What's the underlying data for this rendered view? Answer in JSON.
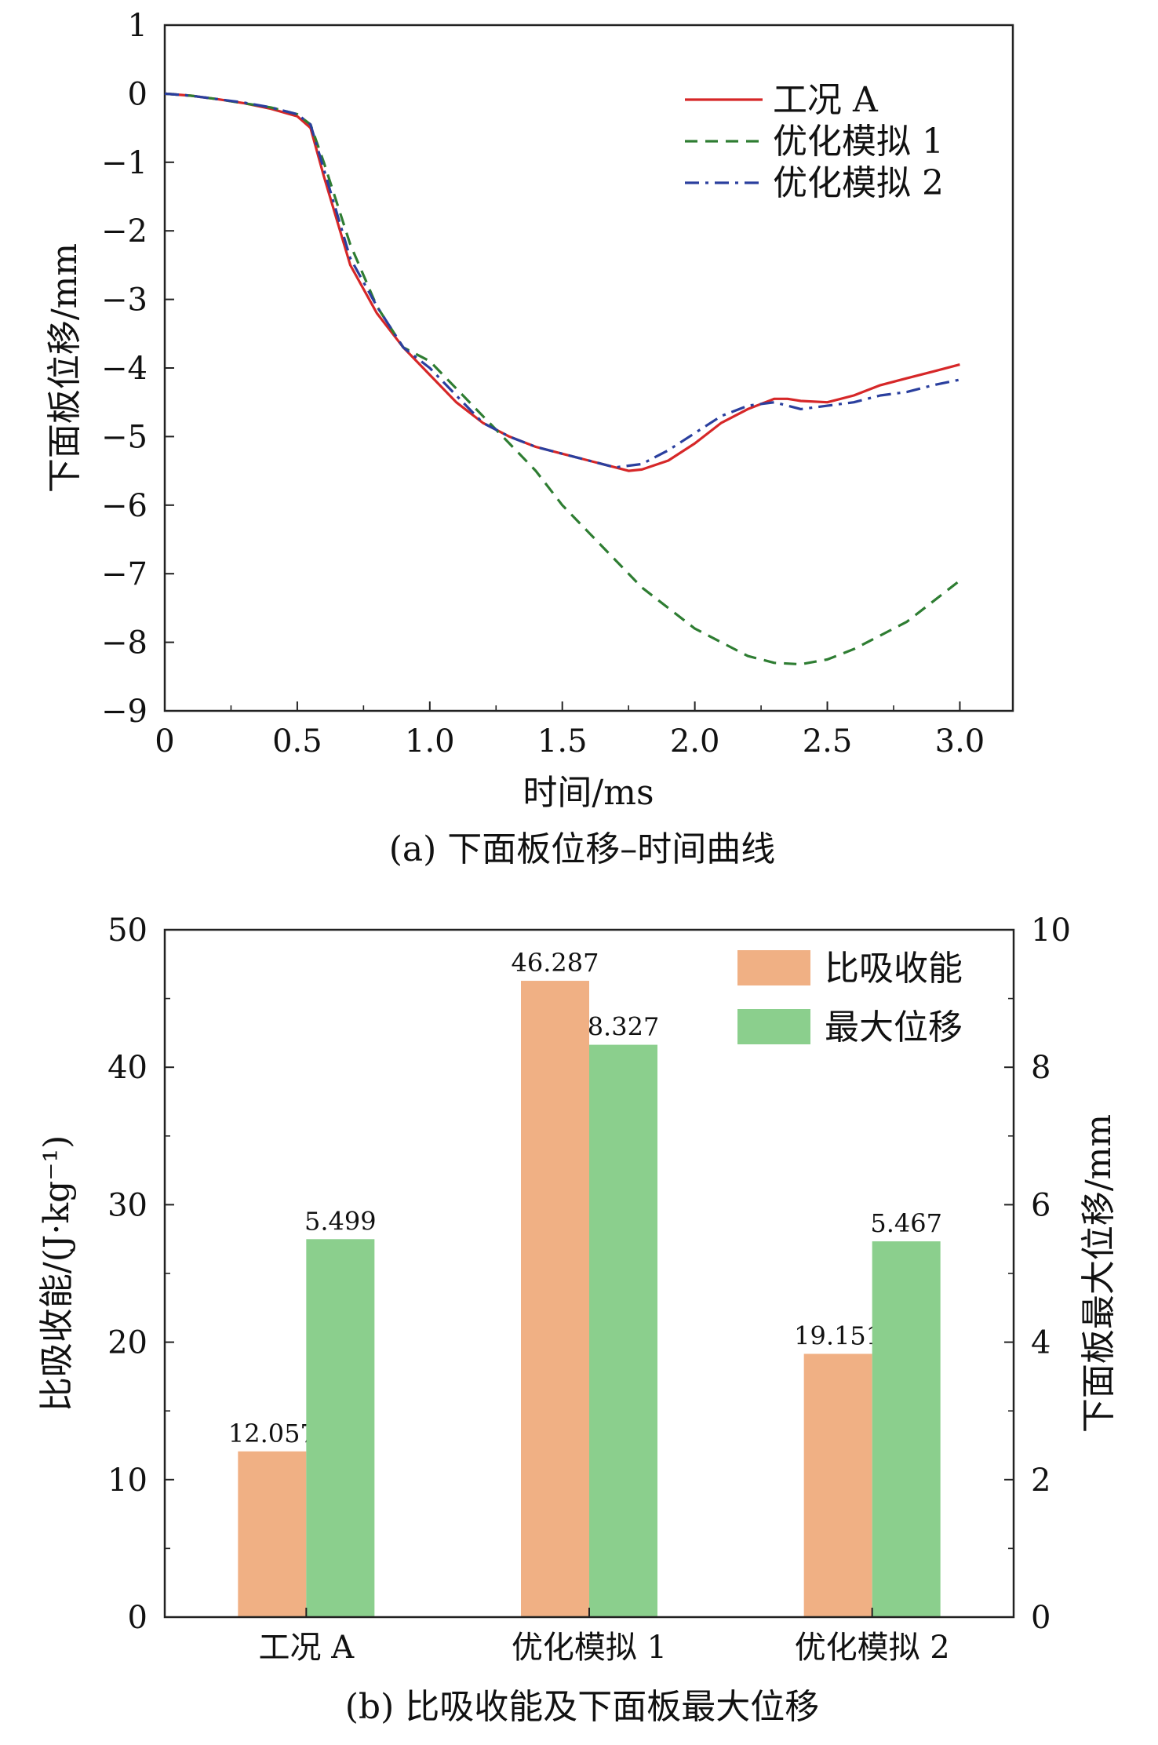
{
  "chart_data": [
    {
      "type": "line",
      "caption": "(a) 下面板位移–时间曲线",
      "xlabel": "时间/ms",
      "ylabel": "下面板位移/mm",
      "xlim": [
        0,
        3.2
      ],
      "ylim": [
        -9,
        1
      ],
      "xticks": [
        0,
        0.5,
        1.0,
        1.5,
        2.0,
        2.5,
        3.0
      ],
      "xtick_labels": [
        "0",
        "0.5",
        "1.0",
        "1.5",
        "2.0",
        "2.5",
        "3.0"
      ],
      "yticks": [
        1,
        0,
        -1,
        -2,
        -3,
        -4,
        -5,
        -6,
        -7,
        -8,
        -9
      ],
      "ytick_labels": [
        "1",
        "0",
        "−1",
        "−2",
        "−3",
        "−4",
        "−5",
        "−6",
        "−7",
        "−8",
        "−9"
      ],
      "legend": "top-right",
      "series": [
        {
          "name": "工况 A",
          "color": "#d62728",
          "dash": "solid",
          "x": [
            0,
            0.1,
            0.2,
            0.3,
            0.4,
            0.5,
            0.55,
            0.6,
            0.7,
            0.8,
            0.9,
            1.0,
            1.1,
            1.2,
            1.3,
            1.4,
            1.5,
            1.6,
            1.7,
            1.75,
            1.8,
            1.9,
            2.0,
            2.1,
            2.2,
            2.3,
            2.35,
            2.4,
            2.5,
            2.6,
            2.7,
            2.8,
            2.9,
            3.0
          ],
          "y": [
            0,
            -0.03,
            -0.08,
            -0.14,
            -0.22,
            -0.33,
            -0.5,
            -1.2,
            -2.5,
            -3.2,
            -3.7,
            -4.1,
            -4.5,
            -4.8,
            -5.0,
            -5.15,
            -5.25,
            -5.35,
            -5.45,
            -5.5,
            -5.48,
            -5.35,
            -5.1,
            -4.8,
            -4.6,
            -4.45,
            -4.45,
            -4.48,
            -4.5,
            -4.4,
            -4.25,
            -4.15,
            -4.05,
            -3.95
          ]
        },
        {
          "name": "优化模拟 1",
          "color": "#2e7d32",
          "dash": "dashed",
          "x": [
            0,
            0.1,
            0.2,
            0.3,
            0.4,
            0.5,
            0.55,
            0.6,
            0.7,
            0.8,
            0.9,
            1.0,
            1.1,
            1.2,
            1.3,
            1.4,
            1.5,
            1.6,
            1.7,
            1.8,
            1.9,
            2.0,
            2.1,
            2.2,
            2.3,
            2.4,
            2.5,
            2.6,
            2.7,
            2.8,
            2.9,
            3.0
          ],
          "y": [
            0,
            -0.03,
            -0.08,
            -0.14,
            -0.2,
            -0.3,
            -0.45,
            -1.0,
            -2.2,
            -3.1,
            -3.7,
            -3.9,
            -4.3,
            -4.7,
            -5.1,
            -5.5,
            -6.0,
            -6.4,
            -6.8,
            -7.2,
            -7.5,
            -7.8,
            -8.0,
            -8.2,
            -8.3,
            -8.32,
            -8.25,
            -8.1,
            -7.9,
            -7.7,
            -7.4,
            -7.1
          ]
        },
        {
          "name": "优化模拟 2",
          "color": "#2a3f9e",
          "dash": "dashdot",
          "x": [
            0,
            0.1,
            0.2,
            0.3,
            0.4,
            0.5,
            0.55,
            0.6,
            0.7,
            0.8,
            0.9,
            1.0,
            1.1,
            1.2,
            1.3,
            1.4,
            1.5,
            1.6,
            1.7,
            1.8,
            1.9,
            2.0,
            2.1,
            2.2,
            2.3,
            2.4,
            2.5,
            2.6,
            2.7,
            2.8,
            2.9,
            3.0
          ],
          "y": [
            0,
            -0.03,
            -0.08,
            -0.13,
            -0.2,
            -0.3,
            -0.45,
            -1.1,
            -2.4,
            -3.1,
            -3.7,
            -4.0,
            -4.4,
            -4.8,
            -5.0,
            -5.15,
            -5.25,
            -5.35,
            -5.45,
            -5.4,
            -5.2,
            -4.95,
            -4.7,
            -4.55,
            -4.5,
            -4.6,
            -4.55,
            -4.5,
            -4.4,
            -4.35,
            -4.25,
            -4.17
          ]
        }
      ]
    },
    {
      "type": "bar",
      "caption": "(b) 比吸收能及下面板最大位移",
      "categories": [
        "工况 A",
        "优化模拟 1",
        "优化模拟 2"
      ],
      "ylabel_left": "比吸收能/(J·kg⁻¹)",
      "ylabel_right": "下面板最大位移/mm",
      "ylim_left": [
        0,
        50
      ],
      "ylim_right": [
        0,
        10
      ],
      "yticks_left": [
        0,
        10,
        20,
        30,
        40,
        50
      ],
      "ytick_labels_left": [
        "0",
        "10",
        "20",
        "30",
        "40",
        "50"
      ],
      "yticks_right": [
        0,
        2,
        4,
        6,
        8,
        10
      ],
      "ytick_labels_right": [
        "0",
        "2",
        "4",
        "6",
        "8",
        "10"
      ],
      "legend": "top-right",
      "series": [
        {
          "name": "比吸收能",
          "axis": "left",
          "color": "#f0b084",
          "values": [
            12.057,
            46.287,
            19.151
          ],
          "labels": [
            "12.057",
            "46.287",
            "19.151"
          ]
        },
        {
          "name": "最大位移",
          "axis": "right",
          "color": "#8bcf8d",
          "values": [
            5.499,
            8.327,
            5.467
          ],
          "labels": [
            "5.499",
            "8.327",
            "5.467"
          ]
        }
      ]
    }
  ]
}
